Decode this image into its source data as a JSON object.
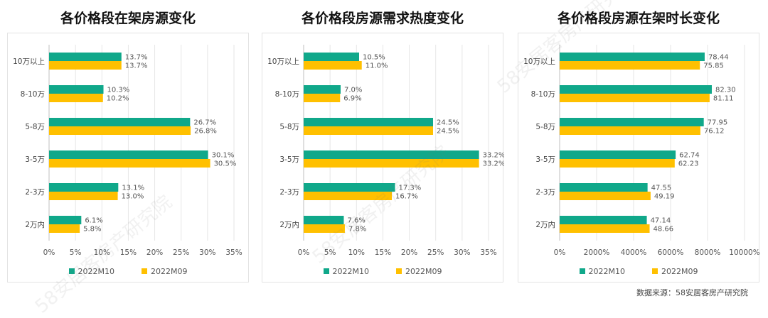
{
  "colors": {
    "m10": "#10A88A",
    "m09": "#FFC000",
    "grid": "#e6e6e6",
    "axis": "#bfbfbf"
  },
  "legend": {
    "series_m10": "2022M10",
    "series_m09": "2022M09"
  },
  "source": "数据来源：58安居客房产研究院",
  "watermark": "58安居客房产研究院",
  "chart_data": [
    {
      "type": "bar",
      "orientation": "horizontal",
      "title": "各价格段在架房源变化",
      "categories": [
        "10万以上",
        "8-10万",
        "5-8万",
        "3-5万",
        "2-3万",
        "2万内"
      ],
      "series": [
        {
          "name": "2022M10",
          "values": [
            13.7,
            10.3,
            26.7,
            30.1,
            13.1,
            6.1
          ]
        },
        {
          "name": "2022M09",
          "values": [
            13.7,
            10.2,
            26.8,
            30.5,
            13.0,
            5.8
          ]
        }
      ],
      "value_labels": [
        [
          "13.7%",
          "10.3%",
          "26.7%",
          "30.1%",
          "13.1%",
          "6.1%"
        ],
        [
          "13.7%",
          "10.2%",
          "26.8%",
          "30.5%",
          "13.0%",
          "5.8%"
        ]
      ],
      "xlim": [
        0,
        35
      ],
      "xticks": [
        "0%",
        "5%",
        "10%",
        "15%",
        "20%",
        "25%",
        "30%",
        "35%"
      ],
      "grid": true,
      "legend_position": "bottom"
    },
    {
      "type": "bar",
      "orientation": "horizontal",
      "title": "各价格段房源需求热度变化",
      "categories": [
        "10万以上",
        "8-10万",
        "5-8万",
        "3-5万",
        "2-3万",
        "2万内"
      ],
      "series": [
        {
          "name": "2022M10",
          "values": [
            10.5,
            7.0,
            24.5,
            33.2,
            17.3,
            7.6
          ]
        },
        {
          "name": "2022M09",
          "values": [
            11.0,
            6.9,
            24.5,
            33.2,
            16.7,
            7.8
          ]
        }
      ],
      "value_labels": [
        [
          "10.5%",
          "7.0%",
          "24.5%",
          "33.2%",
          "17.3%",
          "7.6%"
        ],
        [
          "11.0%",
          "6.9%",
          "24.5%",
          "33.2%",
          "16.7%",
          "7.8%"
        ]
      ],
      "xlim": [
        0,
        35
      ],
      "xticks": [
        "0%",
        "5%",
        "10%",
        "15%",
        "20%",
        "25%",
        "30%",
        "35%"
      ],
      "grid": true,
      "legend_position": "bottom"
    },
    {
      "type": "bar",
      "orientation": "horizontal",
      "title": "各价格段房源在架时长变化",
      "categories": [
        "10万以上",
        "8-10万",
        "5-8万",
        "3-5万",
        "2-3万",
        "2万内"
      ],
      "series": [
        {
          "name": "2022M10",
          "values": [
            78.44,
            82.3,
            77.95,
            62.74,
            47.55,
            47.14
          ]
        },
        {
          "name": "2022M09",
          "values": [
            75.85,
            81.11,
            76.12,
            62.23,
            49.19,
            48.66
          ]
        }
      ],
      "value_labels": [
        [
          "78.44",
          "82.30",
          "77.95",
          "62.74",
          "47.55",
          "47.14"
        ],
        [
          "75.85",
          "81.11",
          "76.12",
          "62.23",
          "49.19",
          "48.66"
        ]
      ],
      "xlim": [
        0,
        100
      ],
      "xticks": [
        "0%",
        "2000%",
        "4000%",
        "6000%",
        "8000%",
        "10000%"
      ],
      "grid": true,
      "legend_position": "bottom"
    }
  ]
}
